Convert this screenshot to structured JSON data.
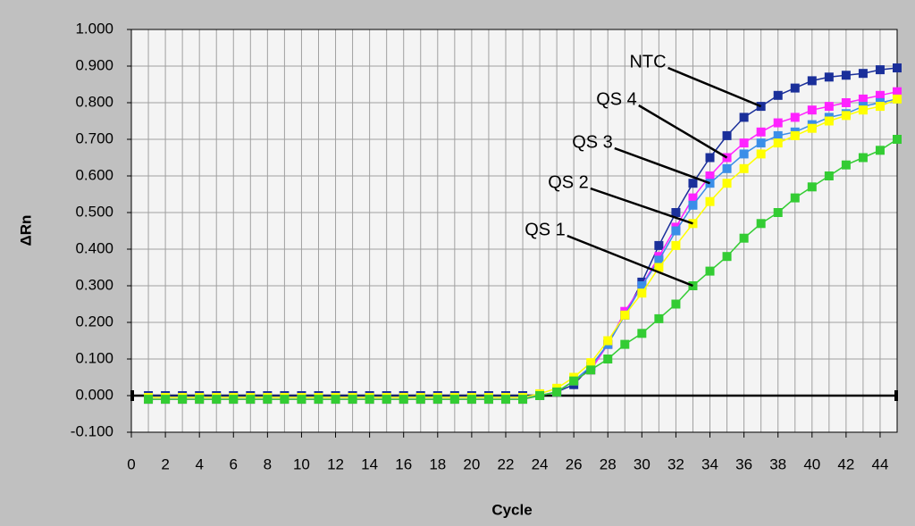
{
  "chart_data": {
    "type": "line",
    "xlabel": "Cycle",
    "ylabel": "ΔRn",
    "x": [
      1,
      2,
      3,
      4,
      5,
      6,
      7,
      8,
      9,
      10,
      11,
      12,
      13,
      14,
      15,
      16,
      17,
      18,
      19,
      20,
      21,
      22,
      23,
      24,
      25,
      26,
      27,
      28,
      29,
      30,
      31,
      32,
      33,
      34,
      35,
      36,
      37,
      38,
      39,
      40,
      41,
      42,
      43,
      44,
      45
    ],
    "series": [
      {
        "name": "NTC",
        "color": "#1a2f9a",
        "values": [
          0,
          0,
          0,
          0,
          0,
          0,
          0,
          0,
          0,
          0,
          0,
          0,
          0,
          0,
          0,
          0,
          0,
          0,
          0,
          0,
          0,
          0,
          0,
          0,
          0.01,
          0.03,
          0.08,
          0.14,
          0.22,
          0.31,
          0.41,
          0.5,
          0.58,
          0.65,
          0.71,
          0.76,
          0.79,
          0.82,
          0.84,
          0.86,
          0.87,
          0.875,
          0.88,
          0.89,
          0.895
        ]
      },
      {
        "name": "QS 4",
        "color": "#ff22ff",
        "values": [
          -0.01,
          -0.01,
          -0.01,
          -0.01,
          -0.01,
          -0.01,
          -0.01,
          -0.01,
          -0.01,
          -0.01,
          -0.01,
          -0.01,
          -0.01,
          -0.01,
          -0.01,
          -0.01,
          -0.01,
          -0.01,
          -0.01,
          -0.01,
          -0.01,
          -0.01,
          -0.01,
          0,
          0.01,
          0.04,
          0.07,
          0.14,
          0.23,
          0.3,
          0.38,
          0.46,
          0.54,
          0.6,
          0.65,
          0.69,
          0.72,
          0.745,
          0.76,
          0.78,
          0.79,
          0.8,
          0.81,
          0.82,
          0.83
        ]
      },
      {
        "name": "QS 3",
        "color": "#3a8ee8",
        "values": [
          -0.005,
          -0.005,
          -0.005,
          -0.005,
          -0.005,
          -0.005,
          -0.005,
          -0.005,
          -0.005,
          -0.005,
          -0.005,
          -0.005,
          -0.005,
          -0.005,
          -0.005,
          -0.005,
          -0.005,
          -0.005,
          -0.005,
          -0.005,
          -0.005,
          -0.005,
          -0.005,
          0,
          0.01,
          0.04,
          0.08,
          0.14,
          0.22,
          0.3,
          0.37,
          0.45,
          0.52,
          0.58,
          0.62,
          0.66,
          0.69,
          0.71,
          0.72,
          0.74,
          0.76,
          0.77,
          0.79,
          0.8,
          0.81
        ]
      },
      {
        "name": "QS 2",
        "color": "#ffff00",
        "values": [
          -0.005,
          -0.005,
          -0.005,
          -0.005,
          -0.005,
          -0.005,
          -0.005,
          -0.005,
          -0.005,
          -0.005,
          -0.005,
          -0.005,
          -0.005,
          -0.005,
          -0.005,
          -0.005,
          -0.005,
          -0.005,
          -0.005,
          -0.005,
          -0.005,
          -0.005,
          -0.005,
          0.005,
          0.02,
          0.05,
          0.09,
          0.15,
          0.22,
          0.28,
          0.35,
          0.41,
          0.47,
          0.53,
          0.58,
          0.62,
          0.66,
          0.69,
          0.71,
          0.73,
          0.75,
          0.765,
          0.78,
          0.79,
          0.81
        ]
      },
      {
        "name": "QS 1",
        "color": "#33cc33",
        "values": [
          -0.01,
          -0.01,
          -0.01,
          -0.01,
          -0.01,
          -0.01,
          -0.01,
          -0.01,
          -0.01,
          -0.01,
          -0.01,
          -0.01,
          -0.01,
          -0.01,
          -0.01,
          -0.01,
          -0.01,
          -0.01,
          -0.01,
          -0.01,
          -0.01,
          -0.01,
          -0.01,
          0,
          0.01,
          0.04,
          0.07,
          0.1,
          0.14,
          0.17,
          0.21,
          0.25,
          0.3,
          0.34,
          0.38,
          0.43,
          0.47,
          0.5,
          0.54,
          0.57,
          0.6,
          0.63,
          0.65,
          0.67,
          0.7
        ]
      }
    ],
    "threshold": 0,
    "xlim": [
      0,
      45
    ],
    "xticks": [
      0,
      2,
      4,
      6,
      8,
      10,
      12,
      14,
      16,
      18,
      20,
      22,
      24,
      26,
      28,
      30,
      32,
      34,
      36,
      38,
      40,
      42,
      44
    ],
    "ylim": [
      -0.1,
      1
    ],
    "yticks": [
      {
        "value": -0.1,
        "label": "-0.100"
      },
      {
        "value": 0,
        "label": "0.000"
      },
      {
        "value": 0.1,
        "label": "0.100"
      },
      {
        "value": 0.2,
        "label": "0.200"
      },
      {
        "value": 0.3,
        "label": "0.300"
      },
      {
        "value": 0.4,
        "label": "0.400"
      },
      {
        "value": 0.5,
        "label": "0.500"
      },
      {
        "value": 0.6,
        "label": "0.600"
      },
      {
        "value": 0.7,
        "label": "0.700"
      },
      {
        "value": 0.8,
        "label": "0.800"
      },
      {
        "value": 0.9,
        "label": "0.900"
      },
      {
        "value": 1,
        "label": "1.000"
      }
    ],
    "grid": true
  }
}
